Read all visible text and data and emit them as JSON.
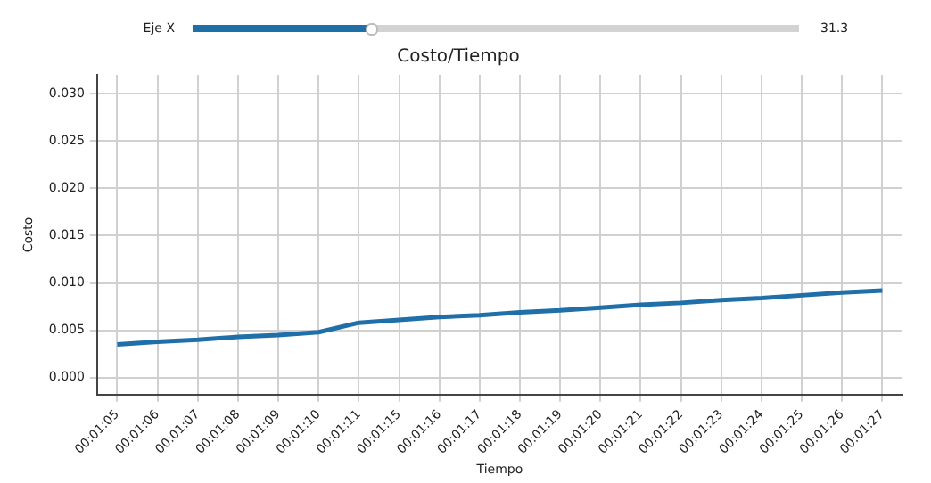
{
  "chart_data": {
    "type": "line",
    "title": "Costo/Tiempo",
    "xlabel": "Tiempo",
    "ylabel": "Costo",
    "annotations": [
      "Eje X",
      "31.3"
    ],
    "categories": [
      "00:01:05",
      "00:01:06",
      "00:01:07",
      "00:01:08",
      "00:01:09",
      "00:01:10",
      "00:01:11",
      "00:01:15",
      "00:01:16",
      "00:01:17",
      "00:01:18",
      "00:01:19",
      "00:01:20",
      "00:01:21",
      "00:01:22",
      "00:01:23",
      "00:01:24",
      "00:01:25",
      "00:01:26",
      "00:01:27"
    ],
    "series": [
      {
        "color": "#1f6fa8",
        "values": [
          0.0035,
          0.0038,
          0.004,
          0.0043,
          0.0045,
          0.0048,
          0.0058,
          0.0061,
          0.0064,
          0.0066,
          0.0069,
          0.0071,
          0.0074,
          0.0077,
          0.0079,
          0.0082,
          0.0084,
          0.0087,
          0.009,
          0.0092
        ]
      }
    ],
    "ylim": [
      -0.0018,
      0.032
    ],
    "yticks": [
      {
        "value": 0,
        "label": "0.000"
      },
      {
        "value": 0.005,
        "label": "0.005"
      },
      {
        "value": 0.01,
        "label": "0.010"
      },
      {
        "value": 0.015,
        "label": "0.015"
      },
      {
        "value": 0.02,
        "label": "0.020"
      },
      {
        "value": 0.025,
        "label": "0.025"
      },
      {
        "value": 0.03,
        "label": "0.030"
      }
    ],
    "grid": true,
    "legend": false,
    "marker": "none",
    "line_style": "solid"
  }
}
